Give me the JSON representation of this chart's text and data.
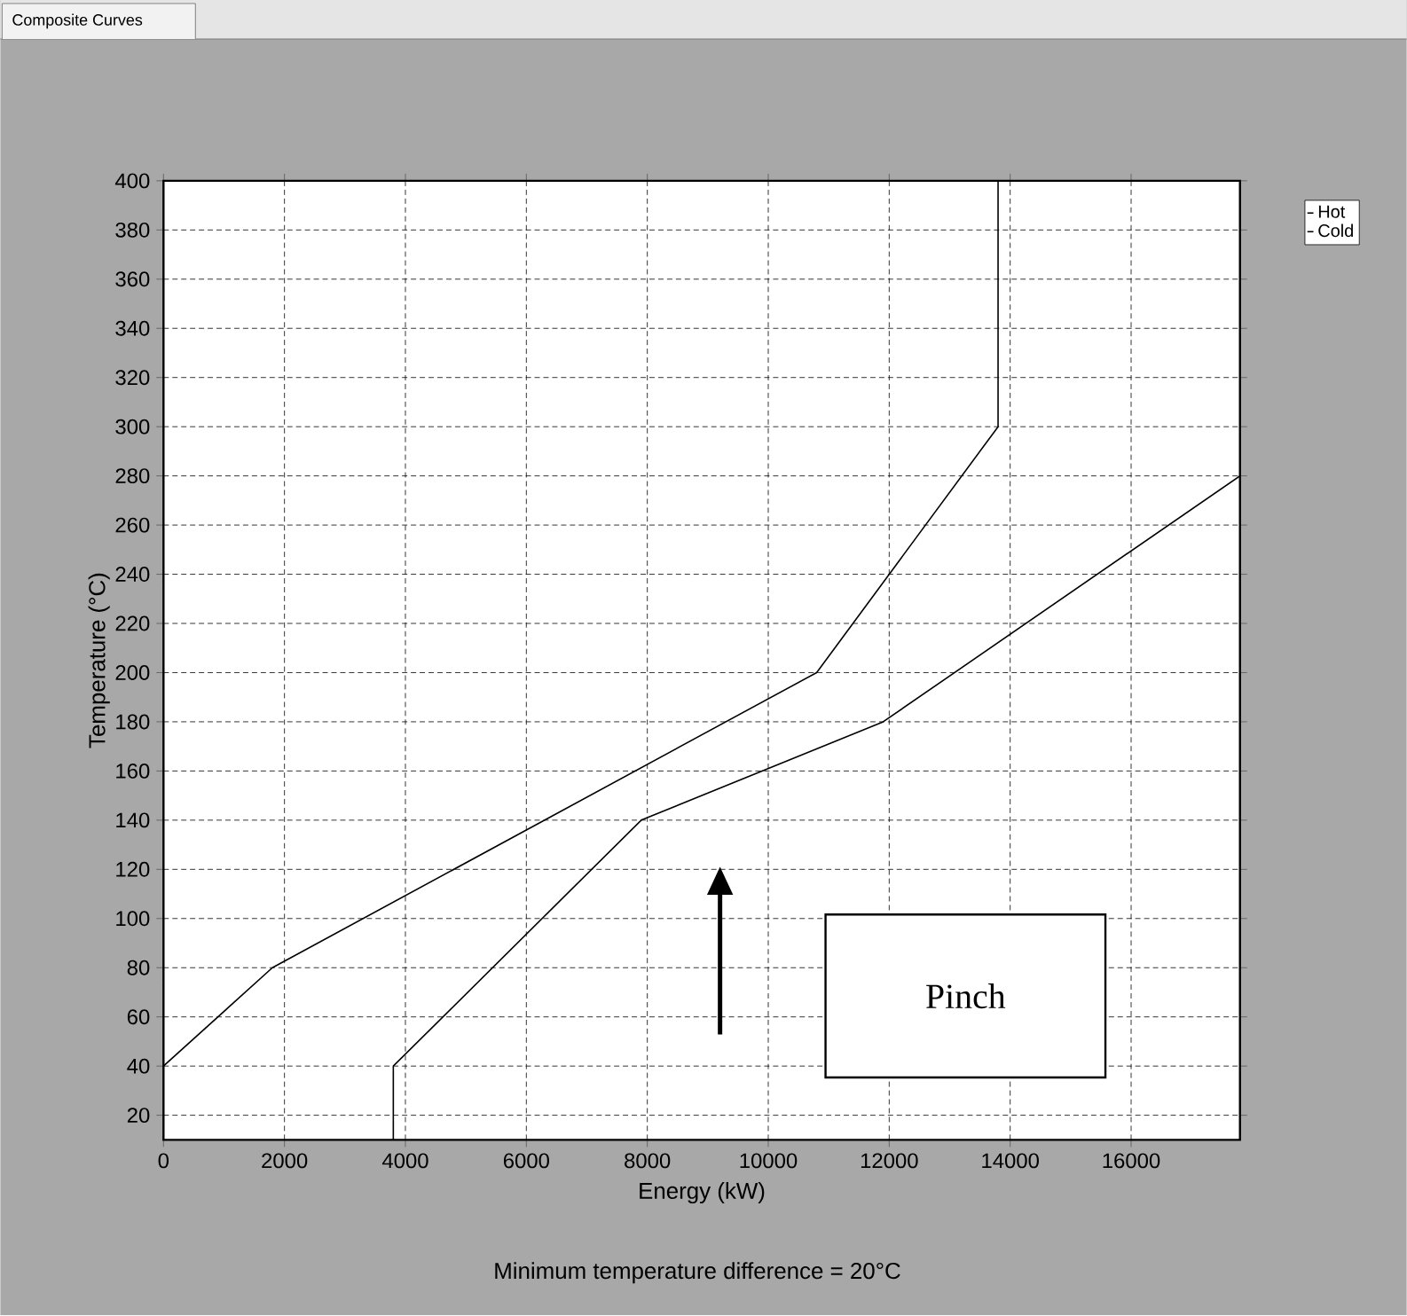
{
  "chart_data": {
    "type": "line",
    "title": "Composite Curves",
    "xlabel": "Energy (kW)",
    "ylabel": "Temperature (°C)",
    "annotations": [
      "Pinch",
      "Minimum temperature difference = 20°C"
    ],
    "xlim": [
      0,
      17800
    ],
    "ylim": [
      10,
      400
    ],
    "xticks": [
      0,
      2000,
      4000,
      6000,
      8000,
      10000,
      12000,
      14000,
      16000
    ],
    "yticks": [
      20,
      40,
      60,
      80,
      100,
      120,
      140,
      160,
      180,
      200,
      220,
      240,
      260,
      280,
      300,
      320,
      340,
      360,
      380,
      400
    ],
    "grid": true,
    "legend": "top right",
    "marker": "none",
    "line_style": "solid",
    "series": [
      {
        "name": "Hot",
        "color": "#000000",
        "x": [
          0,
          1800,
          10800,
          13800,
          13800,
          15800
        ],
        "values": [
          40,
          80,
          200,
          300,
          400,
          400
        ]
      },
      {
        "name": "Cold",
        "color": "#000000",
        "x": [
          3800,
          3800,
          7900,
          11900,
          17800
        ],
        "values": [
          10,
          40,
          140,
          180,
          280
        ]
      }
    ]
  }
}
